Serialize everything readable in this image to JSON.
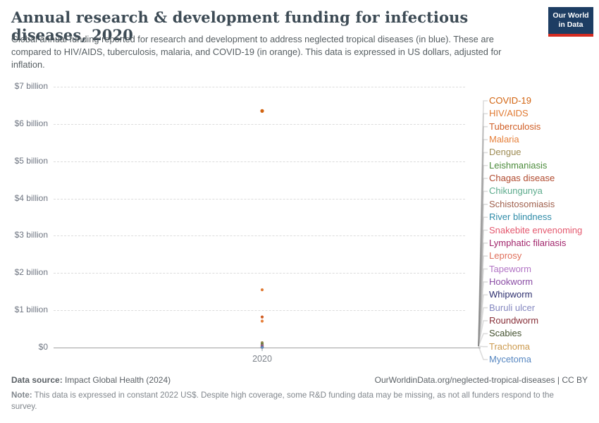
{
  "header": {
    "title": "Annual research & development funding for infectious diseases, 2020",
    "subtitle": "Global annual funding reported for research and development to address neglected tropical diseases (in blue). These are compared to HIV/AIDS, tuberculosis, malaria, and COVID-19 (in orange). This data is expressed in US dollars, adjusted for inflation.",
    "logo_line1": "Our World",
    "logo_line2": "in Data",
    "logo_bg": "#1d3d63",
    "logo_stripe": "#d42b21"
  },
  "chart_data": {
    "type": "scatter",
    "title": "Annual research & development funding for infectious diseases, 2020",
    "x": [
      2020
    ],
    "x_tick_label": "2020",
    "xlabel": "",
    "ylabel": "",
    "ylim": [
      0,
      7
    ],
    "y_unit": "US$ billion",
    "grid": "dashed horizontal",
    "legend_position": "right",
    "y_ticks": [
      {
        "value": 7,
        "label": "$7 billion"
      },
      {
        "value": 6,
        "label": "$6 billion"
      },
      {
        "value": 5,
        "label": "$5 billion"
      },
      {
        "value": 4,
        "label": "$4 billion"
      },
      {
        "value": 3,
        "label": "$3 billion"
      },
      {
        "value": 2,
        "label": "$2 billion"
      },
      {
        "value": 1,
        "label": "$1 billion"
      },
      {
        "value": 0,
        "label": "$0"
      }
    ],
    "series": [
      {
        "name": "COVID-19",
        "value": 6.35,
        "color": "#d2630f",
        "group": "comparison"
      },
      {
        "name": "HIV/AIDS",
        "value": 1.55,
        "color": "#e07a33",
        "group": "comparison"
      },
      {
        "name": "Tuberculosis",
        "value": 0.82,
        "color": "#d05e25",
        "group": "comparison"
      },
      {
        "name": "Malaria",
        "value": 0.71,
        "color": "#e6813c",
        "group": "comparison"
      },
      {
        "name": "Dengue",
        "value": 0.13,
        "color": "#9d8b54",
        "group": "ntd"
      },
      {
        "name": "Leishmaniasis",
        "value": 0.09,
        "color": "#4b8b3b",
        "group": "ntd"
      },
      {
        "name": "Chagas disease",
        "value": 0.07,
        "color": "#b04a2e",
        "group": "ntd"
      },
      {
        "name": "Chikungunya",
        "value": 0.06,
        "color": "#5cab8c",
        "group": "ntd"
      },
      {
        "name": "Schistosomiasis",
        "value": 0.05,
        "color": "#a0604d",
        "group": "ntd"
      },
      {
        "name": "River blindness",
        "value": 0.045,
        "color": "#2e8ba8",
        "group": "ntd"
      },
      {
        "name": "Snakebite envenoming",
        "value": 0.04,
        "color": "#e4586e",
        "group": "ntd"
      },
      {
        "name": "Lymphatic filariasis",
        "value": 0.035,
        "color": "#a1246b",
        "group": "ntd"
      },
      {
        "name": "Leprosy",
        "value": 0.03,
        "color": "#e0705c",
        "group": "ntd"
      },
      {
        "name": "Tapeworm",
        "value": 0.025,
        "color": "#b275c5",
        "group": "ntd"
      },
      {
        "name": "Hookworm",
        "value": 0.02,
        "color": "#8a4da5",
        "group": "ntd"
      },
      {
        "name": "Whipworm",
        "value": 0.015,
        "color": "#2d2e6e",
        "group": "ntd"
      },
      {
        "name": "Buruli ulcer",
        "value": 0.012,
        "color": "#8588c0",
        "group": "ntd"
      },
      {
        "name": "Roundworm",
        "value": 0.01,
        "color": "#883039",
        "group": "ntd"
      },
      {
        "name": "Scabies",
        "value": 0.008,
        "color": "#445230",
        "group": "ntd"
      },
      {
        "name": "Trachoma",
        "value": 0.005,
        "color": "#cc9a4e",
        "group": "ntd"
      },
      {
        "name": "Mycetoma",
        "value": 0.003,
        "color": "#5787c1",
        "group": "ntd"
      }
    ]
  },
  "footer": {
    "source_label": "Data source:",
    "source_value": " Impact Global Health (2024)",
    "rights": "OurWorldinData.org/neglected-tropical-diseases | CC BY",
    "note_label": "Note:",
    "note_value": " This data is expressed in constant 2022 US$. Despite high coverage, some R&D funding data may be missing, as not all funders respond to the survey."
  }
}
